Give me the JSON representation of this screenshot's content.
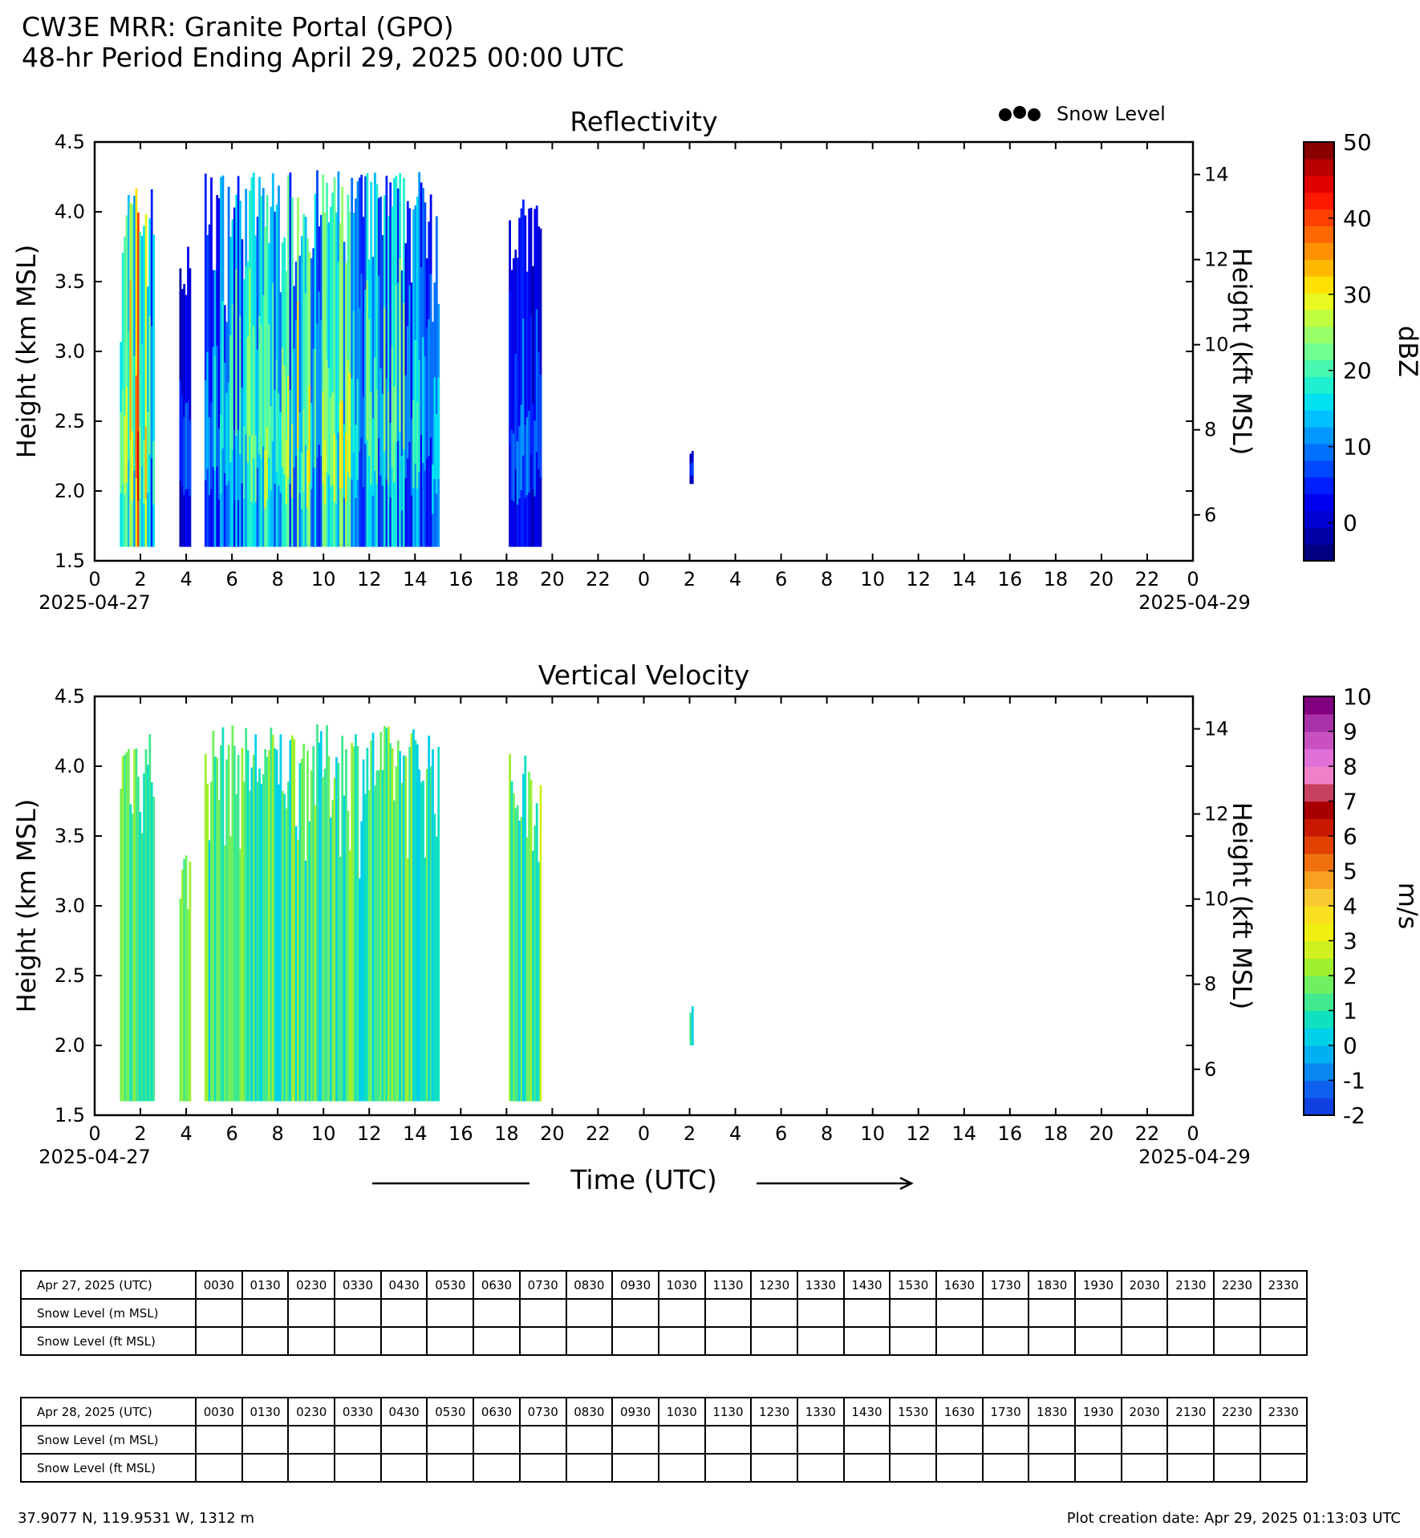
{
  "header": {
    "line1": "CW3E MRR: Granite Portal (GPO)",
    "line2": "48-hr Period Ending April 29, 2025 00:00 UTC"
  },
  "legend": {
    "snow_level_label": "Snow Level",
    "marker_color": "#000000"
  },
  "chart_data": [
    {
      "type": "heatmap",
      "title": "Reflectivity",
      "ylabel": "Height (km MSL)",
      "ylabel_right": "Height (kft MSL)",
      "ylim": [
        1.5,
        4.5
      ],
      "y_ticks": [
        "1.5",
        "2.0",
        "2.5",
        "3.0",
        "3.5",
        "4.0",
        "4.5"
      ],
      "y_right_ticks": [
        "6",
        "8",
        "10",
        "12",
        "14"
      ],
      "x_ticks": [
        "0",
        "2",
        "4",
        "6",
        "8",
        "10",
        "12",
        "14",
        "16",
        "18",
        "20",
        "22",
        "0",
        "2",
        "4",
        "6",
        "8",
        "10",
        "12",
        "14",
        "16",
        "18",
        "20",
        "22",
        "0"
      ],
      "x_start_date": "2025-04-27",
      "x_end_date": "2025-04-29",
      "colorbar": {
        "label": "dBZ",
        "range": [
          -5,
          50
        ],
        "ticks": [
          "50",
          "40",
          "30",
          "20",
          "10",
          "0"
        ],
        "colors": [
          "#000080",
          "#0000a8",
          "#0000d0",
          "#0000f0",
          "#0020ff",
          "#0048ff",
          "#0070ff",
          "#0098ff",
          "#00c0ff",
          "#00e0f0",
          "#20f0d0",
          "#48f8b0",
          "#70ff90",
          "#98ff68",
          "#c0ff40",
          "#e8f820",
          "#ffe000",
          "#ffb800",
          "#ff9000",
          "#ff6800",
          "#ff4000",
          "#ff1800",
          "#e00000",
          "#b80000",
          "#880000"
        ]
      },
      "echoes": [
        {
          "t0": 1.1,
          "t1": 2.6,
          "top": 4.2,
          "bottom": 1.6,
          "core_dbz": 40
        },
        {
          "t0": 3.7,
          "t1": 4.2,
          "top": 3.8,
          "bottom": 1.6,
          "core_dbz": 2
        },
        {
          "t0": 4.8,
          "t1": 15.0,
          "top": 4.3,
          "bottom": 1.6,
          "core_dbz": 25
        },
        {
          "t0": 18.1,
          "t1": 19.5,
          "top": 4.1,
          "bottom": 1.6,
          "core_dbz": 5
        },
        {
          "t0": 26.0,
          "t1": 26.15,
          "top": 2.3,
          "bottom": 2.05,
          "core_dbz": 0
        }
      ]
    },
    {
      "type": "heatmap",
      "title": "Vertical Velocity",
      "ylabel": "Height (km MSL)",
      "ylabel_right": "Height (kft MSL)",
      "xlabel": "Time (UTC)",
      "ylim": [
        1.5,
        4.5
      ],
      "y_ticks": [
        "1.5",
        "2.0",
        "2.5",
        "3.0",
        "3.5",
        "4.0",
        "4.5"
      ],
      "y_right_ticks": [
        "6",
        "8",
        "10",
        "12",
        "14"
      ],
      "x_ticks": [
        "0",
        "2",
        "4",
        "6",
        "8",
        "10",
        "12",
        "14",
        "16",
        "18",
        "20",
        "22",
        "0",
        "2",
        "4",
        "6",
        "8",
        "10",
        "12",
        "14",
        "16",
        "18",
        "20",
        "22",
        "0"
      ],
      "x_start_date": "2025-04-27",
      "x_end_date": "2025-04-29",
      "colorbar": {
        "label": "m/s",
        "range": [
          -2,
          10
        ],
        "ticks": [
          "10",
          "9",
          "8",
          "7",
          "6",
          "5",
          "4",
          "3",
          "2",
          "1",
          "0",
          "-1",
          "-2"
        ],
        "colors": [
          "#1040e0",
          "#1060f0",
          "#0888f0",
          "#00b0f0",
          "#00d0e8",
          "#10e0c0",
          "#40e890",
          "#70f060",
          "#a0f030",
          "#d0f020",
          "#f0f010",
          "#f8e020",
          "#f8c830",
          "#f8a020",
          "#f07010",
          "#e04000",
          "#c81800",
          "#a80000",
          "#c84060",
          "#f080c8",
          "#e070d8",
          "#c850c0",
          "#a830a8",
          "#800080"
        ]
      },
      "echoes": [
        {
          "t0": 1.1,
          "t1": 2.6,
          "top": 4.3,
          "bottom": 1.6,
          "mean_ms": 1.5
        },
        {
          "t0": 3.7,
          "t1": 4.2,
          "top": 3.4,
          "bottom": 1.6,
          "mean_ms": 1.5
        },
        {
          "t0": 4.8,
          "t1": 15.0,
          "top": 4.3,
          "bottom": 1.6,
          "mean_ms": 1.2
        },
        {
          "t0": 18.1,
          "t1": 19.5,
          "top": 4.1,
          "bottom": 1.6,
          "mean_ms": 1.5
        },
        {
          "t0": 26.0,
          "t1": 26.15,
          "top": 2.3,
          "bottom": 2.0,
          "mean_ms": 1.0
        }
      ]
    }
  ],
  "snow_tables": [
    {
      "date_label": "Apr 27, 2025 (UTC)",
      "row_m": "Snow Level (m MSL)",
      "row_ft": "Snow Level (ft MSL)",
      "times": [
        "0030",
        "0130",
        "0230",
        "0330",
        "0430",
        "0530",
        "0630",
        "0730",
        "0830",
        "0930",
        "1030",
        "1130",
        "1230",
        "1330",
        "1430",
        "1530",
        "1630",
        "1730",
        "1830",
        "1930",
        "2030",
        "2130",
        "2230",
        "2330"
      ]
    },
    {
      "date_label": "Apr 28, 2025 (UTC)",
      "row_m": "Snow Level (m MSL)",
      "row_ft": "Snow Level (ft MSL)",
      "times": [
        "0030",
        "0130",
        "0230",
        "0330",
        "0430",
        "0530",
        "0630",
        "0730",
        "0830",
        "0930",
        "1030",
        "1130",
        "1230",
        "1330",
        "1430",
        "1530",
        "1630",
        "1730",
        "1830",
        "1930",
        "2030",
        "2130",
        "2230",
        "2330"
      ]
    }
  ],
  "footer": {
    "location": "37.9077 N, 119.9531 W, 1312 m",
    "created": "Plot creation date: Apr 29, 2025 01:13:03 UTC"
  }
}
